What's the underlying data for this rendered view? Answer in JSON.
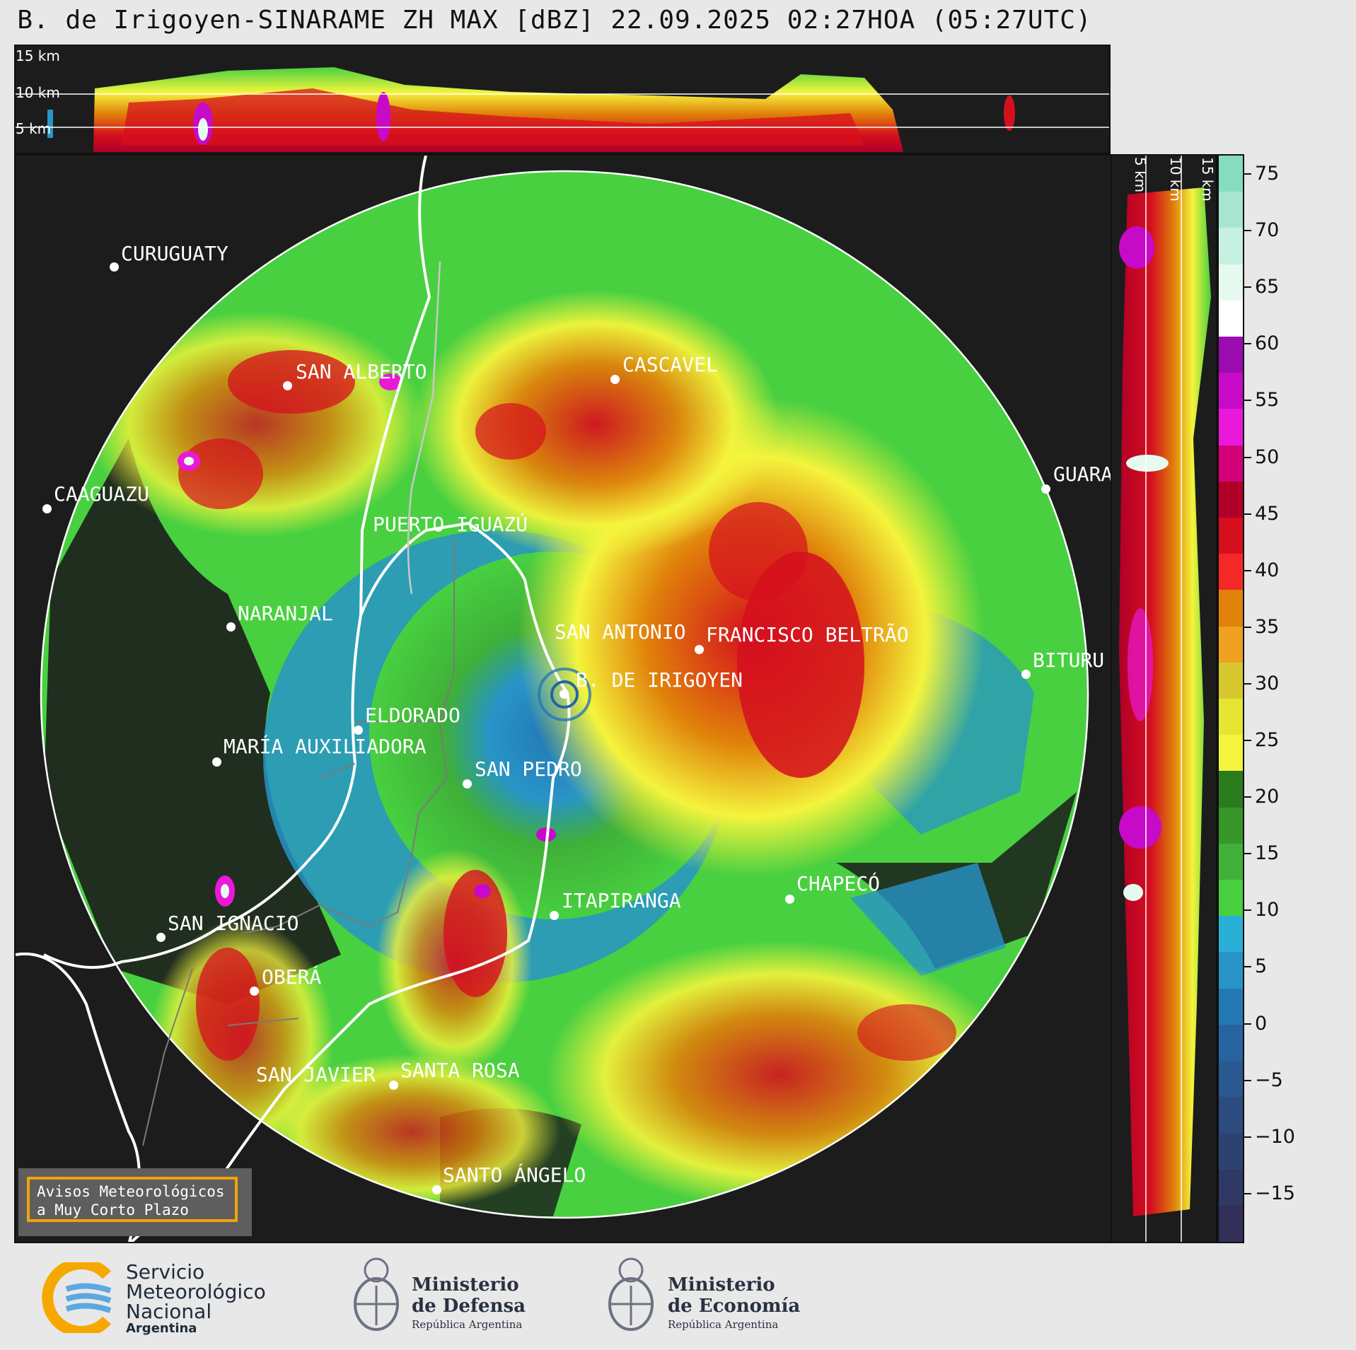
{
  "title": "B. de Irigoyen-SINARAME ZH MAX [dBZ] 22.09.2025 02:27HOA (05:27UTC)",
  "top_panel": {
    "height_labels": [
      "15 km",
      "10 km",
      "5 km"
    ]
  },
  "side_panel": {
    "height_labels": [
      "5 km",
      "10 km",
      "15 km"
    ]
  },
  "colorbar": {
    "ticks": [
      "75",
      "70",
      "65",
      "60",
      "55",
      "50",
      "45",
      "40",
      "35",
      "30",
      "25",
      "20",
      "15",
      "10",
      "5",
      "0",
      "−5",
      "−10",
      "−15"
    ],
    "colors": [
      "#86dcc0",
      "#a6e6d0",
      "#c6f0e0",
      "#e6faf0",
      "#ffffff",
      "#9b0bb0",
      "#c60ac8",
      "#ea18d8",
      "#d4007a",
      "#b00028",
      "#d50f1e",
      "#f52828",
      "#e0820a",
      "#f0a020",
      "#d8c830",
      "#e6e632",
      "#f4f43c",
      "#2a7a1e",
      "#36962a",
      "#3fb038",
      "#48d040",
      "#2ab0d6",
      "#2894c8",
      "#2478b4",
      "#2664a0",
      "#2a5890",
      "#2c4c80",
      "#2e4272",
      "#303864",
      "#323058"
    ]
  },
  "cities": [
    {
      "name": "CURUGUATY",
      "c": "#fff"
    },
    {
      "name": "SAN ALBERTO"
    },
    {
      "name": "CASCAVEL"
    },
    {
      "name": "CAAGUAZU"
    },
    {
      "name": "GUARA"
    },
    {
      "name": "PUERTO IGUAZÚ"
    },
    {
      "name": "NARANJAL"
    },
    {
      "name": "SAN ANTONIO"
    },
    {
      "name": "FRANCISCO BELTRÃO"
    },
    {
      "name": "BITURU"
    },
    {
      "name": "B. DE IRIGOYEN"
    },
    {
      "name": "ELDORADO"
    },
    {
      "name": "MARÍA AUXILIADORA"
    },
    {
      "name": "SAN PEDRO"
    },
    {
      "name": "CHAPECÓ"
    },
    {
      "name": "ITAPIRANGA"
    },
    {
      "name": "SAN IGNACIO"
    },
    {
      "name": "OBERÁ"
    },
    {
      "name": "SAN JAVIER"
    },
    {
      "name": "SANTA ROSA"
    },
    {
      "name": "SANTO ÁNGELO"
    }
  ],
  "warning": {
    "line1": "Avisos Meteorológicos",
    "line2": "a Muy Corto Plazo"
  },
  "footer": {
    "smn": {
      "line1": "Servicio",
      "line2": "Meteorológico",
      "line3": "Nacional",
      "line4": "Argentina"
    },
    "defensa": {
      "line1": "Ministerio",
      "line2": "de Defensa",
      "line3": "República Argentina"
    },
    "economia": {
      "line1": "Ministerio",
      "line2": "de Economía",
      "line3": "República Argentina"
    }
  }
}
